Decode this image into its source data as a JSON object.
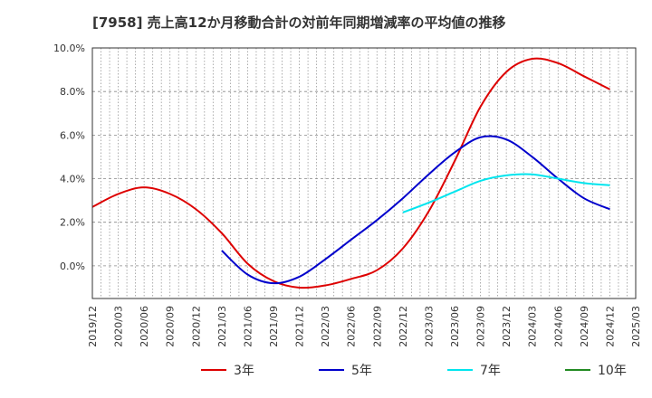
{
  "chart_data": {
    "type": "line",
    "title": "[7958]  売上高12か月移動合計の対前年同期増減率の平均値の推移",
    "xlabel": "",
    "ylabel": "",
    "ylim": [
      -1.5,
      10.0
    ],
    "y_ticks": [
      0.0,
      2.0,
      4.0,
      6.0,
      8.0,
      10.0
    ],
    "y_tick_labels": [
      "0.0%",
      "2.0%",
      "4.0%",
      "6.0%",
      "8.0%",
      "10.0%"
    ],
    "x_tick_labels": [
      "2019/12",
      "2020/03",
      "2020/06",
      "2020/09",
      "2020/12",
      "2021/03",
      "2021/06",
      "2021/09",
      "2021/12",
      "2022/03",
      "2022/06",
      "2022/09",
      "2022/12",
      "2023/03",
      "2023/06",
      "2023/09",
      "2023/12",
      "2024/03",
      "2024/06",
      "2024/09",
      "2024/12",
      "2025/03"
    ],
    "grid": true,
    "legend": "bottom",
    "series": [
      {
        "name": "3年",
        "color": "#dd0000",
        "points": [
          [
            "2019/12",
            2.7
          ],
          [
            "2020/03",
            3.3
          ],
          [
            "2020/06",
            3.6
          ],
          [
            "2020/09",
            3.3
          ],
          [
            "2020/12",
            2.6
          ],
          [
            "2021/03",
            1.5
          ],
          [
            "2021/06",
            0.1
          ],
          [
            "2021/09",
            -0.7
          ],
          [
            "2021/12",
            -1.0
          ],
          [
            "2022/03",
            -0.9
          ],
          [
            "2022/06",
            -0.6
          ],
          [
            "2022/09",
            -0.2
          ],
          [
            "2022/12",
            0.8
          ],
          [
            "2023/03",
            2.5
          ],
          [
            "2023/06",
            4.8
          ],
          [
            "2023/09",
            7.3
          ],
          [
            "2023/12",
            8.9
          ],
          [
            "2024/03",
            9.5
          ],
          [
            "2024/06",
            9.3
          ],
          [
            "2024/09",
            8.7
          ],
          [
            "2024/12",
            8.1
          ]
        ]
      },
      {
        "name": "5年",
        "color": "#0000cc",
        "points": [
          [
            "2021/03",
            0.7
          ],
          [
            "2021/06",
            -0.4
          ],
          [
            "2021/09",
            -0.8
          ],
          [
            "2021/12",
            -0.5
          ],
          [
            "2022/03",
            0.3
          ],
          [
            "2022/06",
            1.2
          ],
          [
            "2022/09",
            2.1
          ],
          [
            "2022/12",
            3.1
          ],
          [
            "2023/03",
            4.2
          ],
          [
            "2023/06",
            5.2
          ],
          [
            "2023/09",
            5.9
          ],
          [
            "2023/12",
            5.8
          ],
          [
            "2024/03",
            5.0
          ],
          [
            "2024/06",
            4.0
          ],
          [
            "2024/09",
            3.1
          ],
          [
            "2024/12",
            2.6
          ]
        ]
      },
      {
        "name": "7年",
        "color": "#00e5ee",
        "points": [
          [
            "2022/12",
            2.45
          ],
          [
            "2023/03",
            2.9
          ],
          [
            "2023/06",
            3.4
          ],
          [
            "2023/09",
            3.9
          ],
          [
            "2023/12",
            4.15
          ],
          [
            "2024/03",
            4.2
          ],
          [
            "2024/06",
            4.0
          ],
          [
            "2024/09",
            3.8
          ],
          [
            "2024/12",
            3.7
          ]
        ]
      },
      {
        "name": "10年",
        "color": "#228b22",
        "points": []
      }
    ]
  }
}
